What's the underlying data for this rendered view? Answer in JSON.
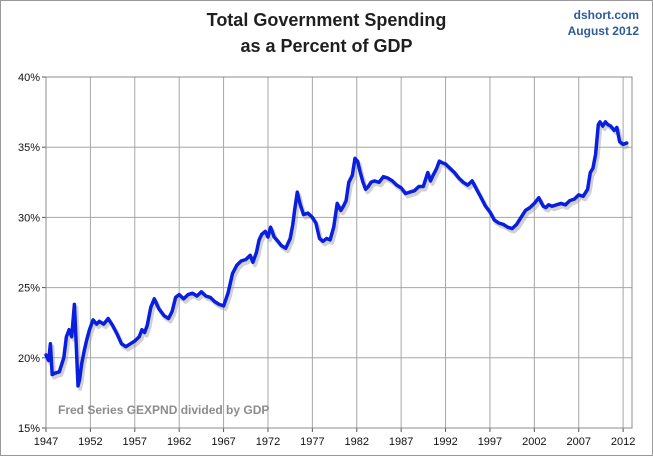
{
  "header": {
    "title_line1": "Total Government Spending",
    "title_line2": "as a Percent of GDP",
    "source_site": "dshort.com",
    "source_date": "August 2012"
  },
  "colors": {
    "line": "#0a1ee0",
    "grid": "#a6a6a6",
    "plot_border": "#8c8c8c"
  },
  "chart_data": {
    "type": "line",
    "title": "Total Government Spending as a Percent of GDP",
    "annotation": "Fred Series GEXPND divided by GDP",
    "xlabel": "",
    "ylabel": "",
    "xlim": [
      1947,
      2013
    ],
    "ylim": [
      15,
      40
    ],
    "x_ticks": [
      1947,
      1952,
      1957,
      1962,
      1967,
      1972,
      1977,
      1982,
      1987,
      1992,
      1997,
      2002,
      2007,
      2012
    ],
    "x_tick_labels": [
      "1947",
      "1952",
      "1957",
      "1962",
      "1967",
      "1972",
      "1977",
      "1982",
      "1987",
      "1992",
      "1997",
      "2002",
      "2007",
      "2012"
    ],
    "y_ticks": [
      15,
      20,
      25,
      30,
      35,
      40
    ],
    "y_tick_labels": [
      "15%",
      "20%",
      "25%",
      "30%",
      "35%",
      "40%"
    ],
    "grid": true,
    "series": [
      {
        "x": [
          1947.0,
          1947.3,
          1947.5,
          1947.7,
          1948.0,
          1948.5,
          1949.0,
          1949.3,
          1949.6,
          1949.9,
          1950.2,
          1950.4,
          1950.6,
          1950.8,
          1951.0,
          1951.3,
          1951.6,
          1951.9,
          1952.3,
          1952.7,
          1953.0,
          1953.5,
          1954.0,
          1954.5,
          1955.0,
          1955.5,
          1956.0,
          1956.5,
          1957.0,
          1957.5,
          1957.8,
          1958.1,
          1958.4,
          1958.8,
          1959.2,
          1959.7,
          1960.3,
          1960.8,
          1961.2,
          1961.6,
          1962.0,
          1962.5,
          1963.0,
          1963.5,
          1964.0,
          1964.5,
          1965.0,
          1965.5,
          1966.0,
          1966.5,
          1967.0,
          1967.5,
          1968.0,
          1968.5,
          1969.0,
          1969.5,
          1970.0,
          1970.3,
          1970.7,
          1971.0,
          1971.3,
          1971.7,
          1972.0,
          1972.3,
          1972.7,
          1973.0,
          1973.5,
          1974.0,
          1974.5,
          1974.8,
          1975.0,
          1975.3,
          1975.6,
          1976.0,
          1976.5,
          1977.0,
          1977.4,
          1977.8,
          1978.2,
          1978.6,
          1979.0,
          1979.4,
          1979.8,
          1980.2,
          1980.5,
          1980.8,
          1981.1,
          1981.5,
          1981.8,
          1982.1,
          1982.4,
          1982.7,
          1983.0,
          1983.3,
          1983.6,
          1984.0,
          1984.5,
          1985.0,
          1985.5,
          1986.0,
          1986.5,
          1987.0,
          1987.5,
          1988.0,
          1988.5,
          1989.0,
          1989.5,
          1990.0,
          1990.3,
          1990.6,
          1991.0,
          1991.3,
          1991.6,
          1992.0,
          1992.5,
          1993.0,
          1993.5,
          1994.0,
          1994.5,
          1995.0,
          1995.5,
          1996.0,
          1996.5,
          1997.0,
          1997.5,
          1998.0,
          1998.5,
          1999.0,
          1999.5,
          2000.0,
          2000.5,
          2001.0,
          2001.5,
          2002.0,
          2002.5,
          2003.0,
          2003.3,
          2003.6,
          2004.0,
          2004.5,
          2005.0,
          2005.5,
          2006.0,
          2006.5,
          2007.0,
          2007.5,
          2008.0,
          2008.3,
          2008.6,
          2008.9,
          2009.2,
          2009.4,
          2009.7,
          2010.0,
          2010.3,
          2010.6,
          2011.0,
          2011.3,
          2011.6,
          2012.0,
          2012.4
        ],
        "values": [
          20.2,
          19.8,
          21.0,
          18.8,
          18.9,
          19.0,
          20.0,
          21.5,
          22.0,
          21.5,
          23.8,
          21.0,
          18.0,
          18.5,
          19.5,
          20.5,
          21.3,
          22.0,
          22.7,
          22.4,
          22.6,
          22.4,
          22.8,
          22.3,
          21.7,
          21.0,
          20.8,
          21.0,
          21.2,
          21.5,
          22.0,
          21.8,
          22.3,
          23.6,
          24.2,
          23.5,
          23.0,
          22.8,
          23.3,
          24.3,
          24.5,
          24.2,
          24.5,
          24.6,
          24.4,
          24.7,
          24.4,
          24.3,
          24.0,
          23.8,
          23.7,
          24.6,
          26.0,
          26.6,
          26.9,
          27.0,
          27.3,
          26.8,
          27.5,
          28.4,
          28.8,
          29.0,
          28.6,
          29.3,
          28.6,
          28.4,
          28.0,
          27.8,
          28.5,
          29.5,
          30.5,
          31.8,
          31.0,
          30.2,
          30.3,
          30.0,
          29.6,
          28.5,
          28.3,
          28.5,
          28.4,
          29.3,
          31.0,
          30.5,
          30.8,
          31.2,
          32.5,
          33.0,
          34.2,
          34.0,
          33.2,
          32.5,
          32.0,
          32.2,
          32.5,
          32.6,
          32.5,
          32.9,
          32.8,
          32.6,
          32.3,
          32.1,
          31.7,
          31.8,
          31.9,
          32.2,
          32.2,
          33.2,
          32.6,
          33.0,
          33.5,
          34.0,
          33.9,
          33.8,
          33.5,
          33.2,
          32.8,
          32.5,
          32.3,
          32.6,
          32.0,
          31.4,
          30.8,
          30.4,
          29.8,
          29.6,
          29.5,
          29.3,
          29.2,
          29.5,
          30.0,
          30.5,
          30.7,
          31.0,
          31.4,
          30.8,
          30.7,
          30.9,
          30.8,
          30.9,
          31.0,
          30.9,
          31.2,
          31.3,
          31.6,
          31.5,
          32.0,
          33.2,
          33.5,
          34.5,
          36.6,
          36.8,
          36.5,
          36.8,
          36.6,
          36.5,
          36.2,
          36.4,
          35.4,
          35.2,
          35.3
        ]
      }
    ]
  }
}
